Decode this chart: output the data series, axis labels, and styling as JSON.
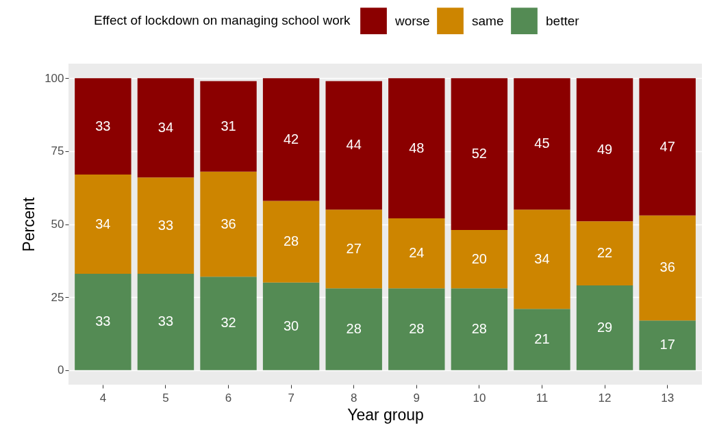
{
  "chart_data": {
    "type": "bar",
    "stacked": true,
    "xlabel": "Year group",
    "ylabel": "Percent",
    "legend_title": "Effect of lockdown on managing school work",
    "categories": [
      "4",
      "5",
      "6",
      "7",
      "8",
      "9",
      "10",
      "11",
      "12",
      "13"
    ],
    "series": [
      {
        "name": "better",
        "color": "#548b54",
        "values": [
          33,
          33,
          32,
          30,
          28,
          28,
          28,
          21,
          29,
          17
        ]
      },
      {
        "name": "same",
        "color": "#cd8500",
        "values": [
          34,
          33,
          36,
          28,
          27,
          24,
          20,
          34,
          22,
          36
        ]
      },
      {
        "name": "worse",
        "color": "#8b0000",
        "values": [
          33,
          34,
          31,
          42,
          44,
          48,
          52,
          45,
          49,
          47
        ]
      }
    ],
    "ylim": [
      -5,
      105
    ],
    "yticks": [
      0,
      25,
      50,
      75,
      100
    ],
    "grid": true,
    "legend": "top",
    "data_labels": true
  }
}
